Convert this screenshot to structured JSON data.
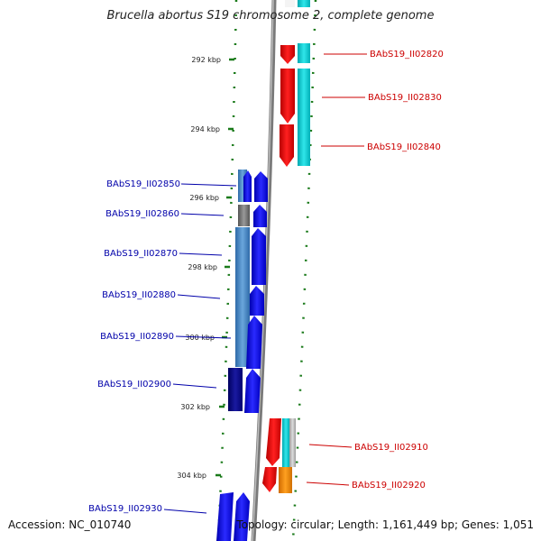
{
  "title": "Brucella abortus S19 chromosome 2, complete genome",
  "footer": {
    "accession": "Accession: NC_010740",
    "info": "Topology: circular; Length: 1,161,449 bp; Genes: 1,051"
  },
  "colors": {
    "forward_label": "#cc0000",
    "reverse_label": "#0000aa",
    "forward_gene": "#ee0000",
    "reverse_gene": "#0000ee",
    "tick": "#1a7a1a",
    "backbone": "#888888"
  },
  "ticks": [
    "292 kbp",
    "294 kbp",
    "296 kbp",
    "298 kbp",
    "300 kbp",
    "302 kbp",
    "304 kbp"
  ],
  "genes": [
    {
      "id": "BAbS19_II02820",
      "strand": "+",
      "color": "#ee0000"
    },
    {
      "id": "BAbS19_II02830",
      "strand": "+",
      "color": "#ee0000"
    },
    {
      "id": "BAbS19_II02840",
      "strand": "+",
      "color": "#ee0000"
    },
    {
      "id": "BAbS19_II02850",
      "strand": "-",
      "color": "#0000ee"
    },
    {
      "id": "BAbS19_II02860",
      "strand": "-",
      "color": "#0000ee"
    },
    {
      "id": "BAbS19_II02870",
      "strand": "-",
      "color": "#0000ee"
    },
    {
      "id": "BAbS19_II02880",
      "strand": "-",
      "color": "#0000ee"
    },
    {
      "id": "BAbS19_II02890",
      "strand": "-",
      "color": "#0000ee"
    },
    {
      "id": "BAbS19_II02900",
      "strand": "-",
      "color": "#0000ee"
    },
    {
      "id": "BAbS19_II02910",
      "strand": "+",
      "color": "#ee0000"
    },
    {
      "id": "BAbS19_II02920",
      "strand": "+",
      "color": "#ee0000"
    },
    {
      "id": "BAbS19_II02930",
      "strand": "-",
      "color": "#0000ee"
    }
  ]
}
